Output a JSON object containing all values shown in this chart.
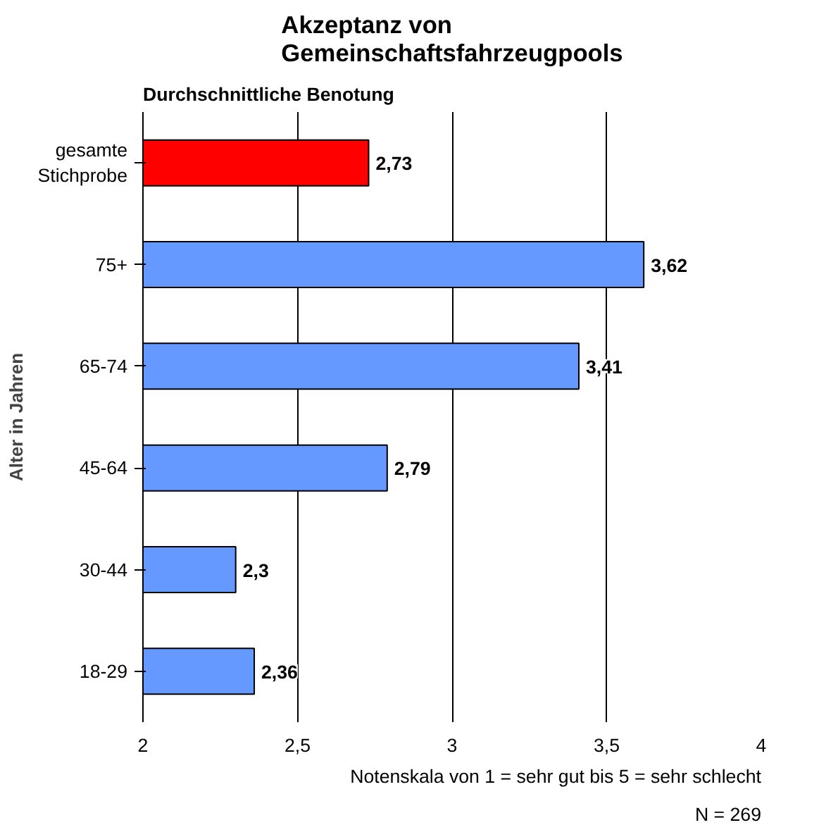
{
  "chart_data": {
    "type": "bar",
    "orientation": "horizontal",
    "title": "Akzeptanz von\nGemeinschaftsfahrzeugpools",
    "subtitle": "Durchschnittliche Benotung",
    "ylabel": "Alter in Jahren",
    "categories": [
      "gesamte\nStichprobe",
      "75+",
      "65-74",
      "45-64",
      "30-44",
      "18-29"
    ],
    "values": [
      2.73,
      3.62,
      3.41,
      2.79,
      2.3,
      2.36
    ],
    "colors": [
      "#ff0000",
      "#6699ff",
      "#6699ff",
      "#6699ff",
      "#6699ff",
      "#6699ff"
    ],
    "value_labels": [
      "2,73",
      "3,62",
      "3,41",
      "2,79",
      "2,3",
      "2,36"
    ],
    "xlim": [
      2,
      4
    ],
    "xticks": [
      2,
      {
        "value": 2.5,
        "label": "2,5"
      },
      3,
      {
        "value": 3.5,
        "label": "3,5"
      },
      4
    ],
    "grid": "x",
    "annotations": [
      "Notenskala von 1 = sehr gut bis 5 = sehr schlecht",
      "N = 269"
    ]
  }
}
